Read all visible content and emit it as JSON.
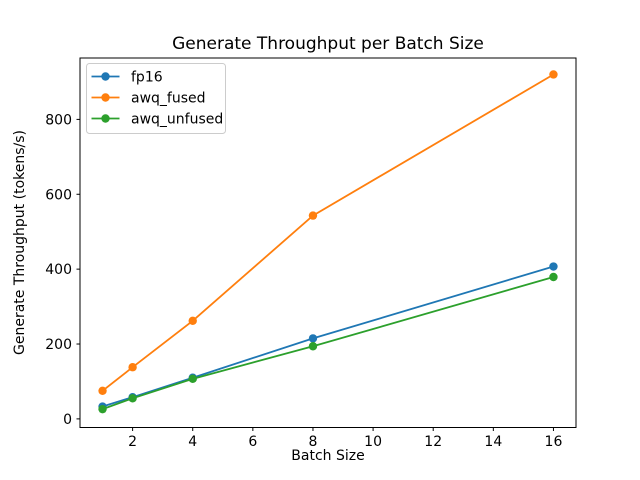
{
  "figure": {
    "background": "#ffffff"
  },
  "chart_data": {
    "type": "line",
    "title": "Generate Throughput per Batch Size",
    "xlabel": "Batch Size",
    "ylabel": "Generate Throughput (tokens/s)",
    "x": [
      1,
      2,
      4,
      8,
      16
    ],
    "series": [
      {
        "name": "fp16",
        "color": "#1f77b4",
        "values": [
          33,
          58,
          110,
          215,
          407
        ]
      },
      {
        "name": "awq_fused",
        "color": "#ff7f0e",
        "values": [
          75,
          138,
          262,
          543,
          920
        ]
      },
      {
        "name": "awq_unfused",
        "color": "#2ca02c",
        "values": [
          26,
          55,
          107,
          194,
          379
        ]
      }
    ],
    "xlim": [
      0.25,
      16.75
    ],
    "ylim": [
      -23,
      964
    ],
    "xticks": [
      2,
      4,
      6,
      8,
      10,
      12,
      14,
      16
    ],
    "yticks": [
      0,
      200,
      400,
      600,
      800
    ],
    "grid": false,
    "marker": "o",
    "legend": {
      "position": "upper left",
      "entries": [
        "fp16",
        "awq_fused",
        "awq_unfused"
      ]
    },
    "axis_color": "#000000",
    "legend_border_color": "#cccccc",
    "legend_background": "#ffffff"
  }
}
